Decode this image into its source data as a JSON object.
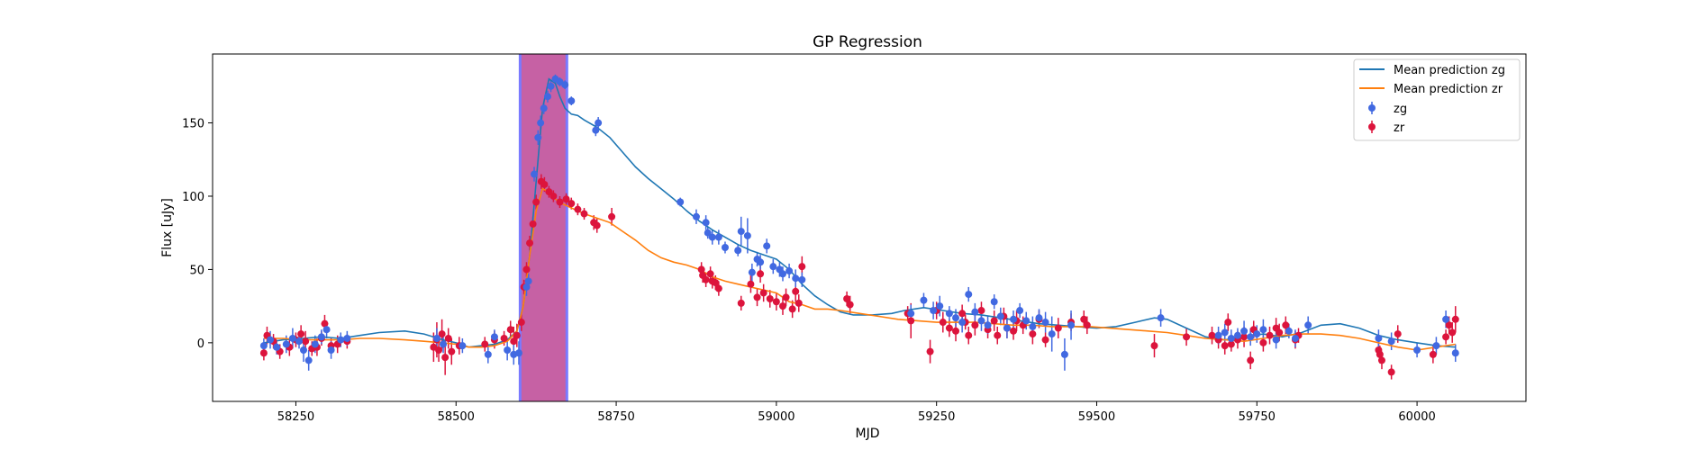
{
  "chart_data": {
    "type": "scatter",
    "title": "GP Regression",
    "xlabel": "MJD",
    "ylabel": "Flux [uJy]",
    "xlim": [
      58120,
      60170
    ],
    "ylim": [
      -40,
      197
    ],
    "x_ticks": [
      58250,
      58500,
      58750,
      59000,
      59250,
      59500,
      59750,
      60000
    ],
    "y_ticks": [
      0,
      50,
      100,
      150
    ],
    "grid": false,
    "legend_position": "top-right",
    "colors": {
      "mean_zg": "#1f77b4",
      "mean_zr": "#ff7f0e",
      "zg": "#4169e1",
      "zr": "#dc143c",
      "span_fill": "#c0509a",
      "span_edge": "#7a7aff"
    },
    "shaded_region": {
      "x_start": 58600,
      "x_end": 58673
    },
    "series": [
      {
        "name": "Mean prediction zg",
        "kind": "line",
        "x": [
          58200,
          58230,
          58260,
          58290,
          58320,
          58350,
          58380,
          58420,
          58450,
          58480,
          58500,
          58520,
          58540,
          58560,
          58580,
          58595,
          58605,
          58615,
          58625,
          58635,
          58645,
          58655,
          58662,
          58670,
          58680,
          58690,
          58700,
          58720,
          58740,
          58760,
          58780,
          58800,
          58820,
          58840,
          58860,
          58880,
          58900,
          58920,
          58940,
          58960,
          58980,
          59000,
          59020,
          59040,
          59060,
          59080,
          59100,
          59120,
          59150,
          59180,
          59200,
          59230,
          59260,
          59290,
          59320,
          59350,
          59380,
          59410,
          59440,
          59470,
          59500,
          59530,
          59560,
          59590,
          59610,
          59640,
          59670,
          59700,
          59730,
          59760,
          59790,
          59820,
          59850,
          59880,
          59910,
          59940,
          59970,
          60000,
          60030,
          60060
        ],
        "y": [
          0,
          2,
          3,
          4,
          3,
          5,
          7,
          8,
          6,
          2,
          0,
          -3,
          -2,
          -1,
          2,
          8,
          25,
          60,
          110,
          160,
          180,
          177,
          168,
          160,
          156,
          155,
          152,
          147,
          140,
          130,
          120,
          112,
          105,
          98,
          90,
          83,
          77,
          72,
          67,
          63,
          60,
          57,
          50,
          40,
          32,
          26,
          21,
          19,
          19,
          20,
          22,
          24,
          22,
          20,
          19,
          17,
          15,
          13,
          12,
          11,
          10,
          11,
          14,
          17,
          16,
          10,
          4,
          2,
          4,
          6,
          4,
          7,
          12,
          13,
          10,
          5,
          2,
          0,
          -2,
          -3
        ]
      },
      {
        "name": "Mean prediction zr",
        "kind": "line",
        "x": [
          58200,
          58230,
          58260,
          58290,
          58320,
          58350,
          58380,
          58420,
          58450,
          58480,
          58500,
          58520,
          58540,
          58560,
          58580,
          58595,
          58605,
          58615,
          58625,
          58635,
          58645,
          58655,
          58665,
          58680,
          58700,
          58720,
          58740,
          58760,
          58780,
          58800,
          58820,
          58840,
          58860,
          58880,
          58900,
          58920,
          58940,
          58960,
          58980,
          59000,
          59020,
          59040,
          59060,
          59080,
          59100,
          59130,
          59160,
          59190,
          59220,
          59250,
          59280,
          59310,
          59340,
          59370,
          59400,
          59430,
          59460,
          59490,
          59520,
          59550,
          59580,
          59610,
          59640,
          59670,
          59700,
          59730,
          59760,
          59790,
          59820,
          59850,
          59880,
          59910,
          59940,
          59970,
          60000,
          60030,
          60060
        ],
        "y": [
          3,
          3,
          2,
          2,
          2,
          3,
          3,
          2,
          1,
          0,
          -1,
          -3,
          -3,
          -2,
          1,
          8,
          25,
          60,
          90,
          105,
          103,
          98,
          95,
          92,
          88,
          85,
          82,
          76,
          70,
          63,
          58,
          55,
          53,
          50,
          45,
          42,
          40,
          38,
          36,
          34,
          28,
          26,
          23,
          23,
          22,
          20,
          18,
          16,
          15,
          14,
          14,
          14,
          13,
          12,
          12,
          11,
          11,
          11,
          10,
          9,
          8,
          7,
          5,
          3,
          2,
          1,
          3,
          5,
          6,
          6,
          5,
          3,
          0,
          -3,
          -5,
          -3,
          -1
        ]
      },
      {
        "name": "zg",
        "kind": "errorbar",
        "x": [
          58200,
          58210,
          58220,
          58235,
          58245,
          58255,
          58262,
          58270,
          58280,
          58290,
          58298,
          58305,
          58320,
          58330,
          58470,
          58480,
          58510,
          58550,
          58560,
          58580,
          58590,
          58598,
          58610,
          58613,
          58622,
          58628,
          58632,
          58637,
          58643,
          58648,
          58655,
          58662,
          58670,
          58680,
          58718,
          58722,
          58850,
          58875,
          58890,
          58893,
          58900,
          58910,
          58920,
          58940,
          58945,
          58955,
          58962,
          58970,
          58975,
          58985,
          58995,
          59005,
          59010,
          59020,
          59030,
          59040,
          59210,
          59230,
          59245,
          59255,
          59270,
          59280,
          59290,
          59300,
          59310,
          59320,
          59330,
          59340,
          59350,
          59360,
          59370,
          59380,
          59390,
          59400,
          59410,
          59420,
          59430,
          59450,
          59460,
          59600,
          59690,
          59700,
          59710,
          59720,
          59730,
          59740,
          59750,
          59760,
          59780,
          59800,
          59810,
          59830,
          59940,
          59960,
          60000,
          60030,
          60045,
          60060
        ],
        "y": [
          -2,
          2,
          -3,
          -1,
          3,
          1,
          -5,
          -12,
          -1,
          4,
          9,
          -5,
          2,
          3,
          3,
          -1,
          -2,
          -8,
          4,
          -5,
          -8,
          -7,
          38,
          42,
          115,
          140,
          150,
          160,
          168,
          175,
          180,
          178,
          176,
          165,
          145,
          150,
          96,
          86,
          82,
          75,
          72,
          72,
          65,
          63,
          76,
          73,
          48,
          57,
          55,
          66,
          52,
          50,
          47,
          49,
          44,
          43,
          20,
          29,
          22,
          25,
          20,
          17,
          14,
          33,
          21,
          15,
          12,
          28,
          18,
          10,
          16,
          22,
          15,
          11,
          17,
          14,
          6,
          -8,
          12,
          17,
          5,
          7,
          3,
          5,
          8,
          4,
          6,
          9,
          2,
          8,
          3,
          12,
          3,
          1,
          -5,
          -2,
          16,
          -7
        ],
        "err": [
          5,
          6,
          5,
          6,
          7,
          5,
          8,
          7,
          6,
          5,
          6,
          6,
          5,
          5,
          7,
          6,
          5,
          6,
          5,
          7,
          7,
          8,
          6,
          5,
          5,
          5,
          5,
          4,
          4,
          4,
          3,
          3,
          3,
          3,
          4,
          4,
          3,
          5,
          5,
          4,
          5,
          5,
          4,
          4,
          10,
          12,
          6,
          5,
          5,
          5,
          5,
          5,
          5,
          5,
          6,
          5,
          6,
          5,
          6,
          7,
          5,
          6,
          7,
          5,
          6,
          7,
          6,
          5,
          6,
          7,
          6,
          5,
          6,
          7,
          6,
          7,
          12,
          11,
          10,
          6,
          6,
          6,
          6,
          5,
          7,
          6,
          6,
          7,
          6,
          5,
          6,
          6,
          6,
          6,
          5,
          6,
          6,
          6
        ]
      },
      {
        "name": "zr",
        "kind": "errorbar",
        "x": [
          58200,
          58205,
          58215,
          58225,
          58240,
          58250,
          58258,
          58265,
          58275,
          58283,
          58290,
          58295,
          58305,
          58315,
          58330,
          58465,
          58470,
          58473,
          58478,
          58483,
          58488,
          58493,
          58505,
          58545,
          58560,
          58575,
          58585,
          58590,
          58595,
          58602,
          58606,
          58610,
          58615,
          58620,
          58625,
          58633,
          58638,
          58645,
          58652,
          58662,
          58672,
          58680,
          58690,
          58700,
          58715,
          58720,
          58743,
          58883,
          58885,
          58890,
          58897,
          58900,
          58905,
          58910,
          58945,
          58960,
          58970,
          58975,
          58980,
          58990,
          59000,
          59010,
          59015,
          59025,
          59030,
          59035,
          59040,
          59110,
          59115,
          59205,
          59210,
          59240,
          59250,
          59260,
          59270,
          59280,
          59290,
          59295,
          59300,
          59310,
          59320,
          59330,
          59340,
          59345,
          59355,
          59360,
          59370,
          59375,
          59385,
          59400,
          59410,
          59420,
          59440,
          59460,
          59480,
          59485,
          59590,
          59640,
          59680,
          59690,
          59700,
          59705,
          59710,
          59720,
          59730,
          59740,
          59745,
          59760,
          59770,
          59780,
          59785,
          59795,
          59810,
          59815,
          59940,
          59942,
          59945,
          59960,
          59970,
          60025,
          60045,
          60050,
          60055,
          60060
        ],
        "y": [
          -7,
          5,
          1,
          -6,
          -3,
          2,
          6,
          1,
          -4,
          -3,
          3,
          13,
          -2,
          -1,
          1,
          -3,
          2,
          -5,
          6,
          -10,
          3,
          -6,
          -2,
          -1,
          2,
          3,
          9,
          1,
          5,
          14,
          38,
          50,
          68,
          81,
          96,
          110,
          108,
          103,
          100,
          96,
          98,
          95,
          91,
          88,
          82,
          80,
          86,
          50,
          46,
          43,
          47,
          42,
          41,
          37,
          27,
          40,
          31,
          47,
          34,
          30,
          28,
          25,
          31,
          23,
          35,
          27,
          52,
          30,
          26,
          20,
          15,
          -6,
          22,
          14,
          10,
          8,
          20,
          14,
          5,
          12,
          22,
          9,
          15,
          5,
          18,
          10,
          8,
          15,
          12,
          6,
          16,
          2,
          10,
          14,
          16,
          12,
          -2,
          4,
          5,
          2,
          -2,
          14,
          -1,
          2,
          4,
          -12,
          9,
          0,
          5,
          10,
          7,
          12,
          2,
          5,
          -5,
          -8,
          -12,
          -20,
          6,
          -8,
          4,
          12,
          7,
          16
        ],
        "err": [
          5,
          6,
          5,
          5,
          6,
          5,
          6,
          7,
          5,
          6,
          5,
          6,
          5,
          6,
          5,
          10,
          12,
          8,
          10,
          12,
          7,
          9,
          6,
          5,
          6,
          5,
          6,
          10,
          8,
          6,
          5,
          5,
          5,
          5,
          5,
          5,
          5,
          4,
          4,
          4,
          4,
          4,
          4,
          4,
          5,
          5,
          6,
          5,
          5,
          5,
          5,
          5,
          5,
          5,
          5,
          6,
          6,
          6,
          6,
          6,
          6,
          6,
          6,
          6,
          7,
          6,
          7,
          5,
          6,
          5,
          12,
          8,
          6,
          7,
          6,
          7,
          6,
          5,
          6,
          7,
          6,
          6,
          7,
          6,
          6,
          7,
          6,
          7,
          6,
          7,
          6,
          5,
          7,
          6,
          6,
          6,
          8,
          6,
          6,
          6,
          6,
          6,
          5,
          6,
          7,
          6,
          6,
          6,
          6,
          7,
          6,
          6,
          6,
          5,
          5,
          6,
          6,
          5,
          6,
          6,
          5,
          6,
          7,
          9
        ]
      }
    ]
  }
}
